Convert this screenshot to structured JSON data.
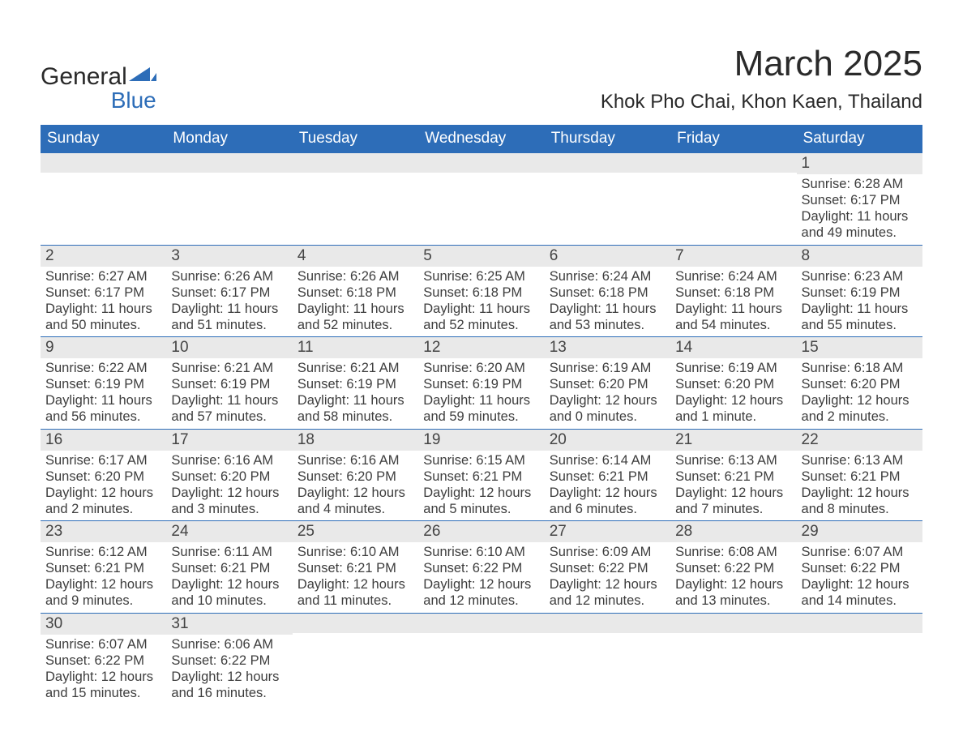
{
  "logo": {
    "word1": "General",
    "word2": "Blue",
    "shape_color": "#2d6db8"
  },
  "title": "March 2025",
  "location": "Khok Pho Chai, Khon Kaen, Thailand",
  "header_bg": "#2d6db8",
  "header_fg": "#ffffff",
  "strip_bg": "#e9e9e9",
  "border_color": "#2d6db8",
  "weekdays": [
    "Sunday",
    "Monday",
    "Tuesday",
    "Wednesday",
    "Thursday",
    "Friday",
    "Saturday"
  ],
  "weeks": [
    [
      null,
      null,
      null,
      null,
      null,
      null,
      {
        "n": "1",
        "sunrise": "6:28 AM",
        "sunset": "6:17 PM",
        "daylight": "11 hours and 49 minutes."
      }
    ],
    [
      {
        "n": "2",
        "sunrise": "6:27 AM",
        "sunset": "6:17 PM",
        "daylight": "11 hours and 50 minutes."
      },
      {
        "n": "3",
        "sunrise": "6:26 AM",
        "sunset": "6:17 PM",
        "daylight": "11 hours and 51 minutes."
      },
      {
        "n": "4",
        "sunrise": "6:26 AM",
        "sunset": "6:18 PM",
        "daylight": "11 hours and 52 minutes."
      },
      {
        "n": "5",
        "sunrise": "6:25 AM",
        "sunset": "6:18 PM",
        "daylight": "11 hours and 52 minutes."
      },
      {
        "n": "6",
        "sunrise": "6:24 AM",
        "sunset": "6:18 PM",
        "daylight": "11 hours and 53 minutes."
      },
      {
        "n": "7",
        "sunrise": "6:24 AM",
        "sunset": "6:18 PM",
        "daylight": "11 hours and 54 minutes."
      },
      {
        "n": "8",
        "sunrise": "6:23 AM",
        "sunset": "6:19 PM",
        "daylight": "11 hours and 55 minutes."
      }
    ],
    [
      {
        "n": "9",
        "sunrise": "6:22 AM",
        "sunset": "6:19 PM",
        "daylight": "11 hours and 56 minutes."
      },
      {
        "n": "10",
        "sunrise": "6:21 AM",
        "sunset": "6:19 PM",
        "daylight": "11 hours and 57 minutes."
      },
      {
        "n": "11",
        "sunrise": "6:21 AM",
        "sunset": "6:19 PM",
        "daylight": "11 hours and 58 minutes."
      },
      {
        "n": "12",
        "sunrise": "6:20 AM",
        "sunset": "6:19 PM",
        "daylight": "11 hours and 59 minutes."
      },
      {
        "n": "13",
        "sunrise": "6:19 AM",
        "sunset": "6:20 PM",
        "daylight": "12 hours and 0 minutes."
      },
      {
        "n": "14",
        "sunrise": "6:19 AM",
        "sunset": "6:20 PM",
        "daylight": "12 hours and 1 minute."
      },
      {
        "n": "15",
        "sunrise": "6:18 AM",
        "sunset": "6:20 PM",
        "daylight": "12 hours and 2 minutes."
      }
    ],
    [
      {
        "n": "16",
        "sunrise": "6:17 AM",
        "sunset": "6:20 PM",
        "daylight": "12 hours and 2 minutes."
      },
      {
        "n": "17",
        "sunrise": "6:16 AM",
        "sunset": "6:20 PM",
        "daylight": "12 hours and 3 minutes."
      },
      {
        "n": "18",
        "sunrise": "6:16 AM",
        "sunset": "6:20 PM",
        "daylight": "12 hours and 4 minutes."
      },
      {
        "n": "19",
        "sunrise": "6:15 AM",
        "sunset": "6:21 PM",
        "daylight": "12 hours and 5 minutes."
      },
      {
        "n": "20",
        "sunrise": "6:14 AM",
        "sunset": "6:21 PM",
        "daylight": "12 hours and 6 minutes."
      },
      {
        "n": "21",
        "sunrise": "6:13 AM",
        "sunset": "6:21 PM",
        "daylight": "12 hours and 7 minutes."
      },
      {
        "n": "22",
        "sunrise": "6:13 AM",
        "sunset": "6:21 PM",
        "daylight": "12 hours and 8 minutes."
      }
    ],
    [
      {
        "n": "23",
        "sunrise": "6:12 AM",
        "sunset": "6:21 PM",
        "daylight": "12 hours and 9 minutes."
      },
      {
        "n": "24",
        "sunrise": "6:11 AM",
        "sunset": "6:21 PM",
        "daylight": "12 hours and 10 minutes."
      },
      {
        "n": "25",
        "sunrise": "6:10 AM",
        "sunset": "6:21 PM",
        "daylight": "12 hours and 11 minutes."
      },
      {
        "n": "26",
        "sunrise": "6:10 AM",
        "sunset": "6:22 PM",
        "daylight": "12 hours and 12 minutes."
      },
      {
        "n": "27",
        "sunrise": "6:09 AM",
        "sunset": "6:22 PM",
        "daylight": "12 hours and 12 minutes."
      },
      {
        "n": "28",
        "sunrise": "6:08 AM",
        "sunset": "6:22 PM",
        "daylight": "12 hours and 13 minutes."
      },
      {
        "n": "29",
        "sunrise": "6:07 AM",
        "sunset": "6:22 PM",
        "daylight": "12 hours and 14 minutes."
      }
    ],
    [
      {
        "n": "30",
        "sunrise": "6:07 AM",
        "sunset": "6:22 PM",
        "daylight": "12 hours and 15 minutes."
      },
      {
        "n": "31",
        "sunrise": "6:06 AM",
        "sunset": "6:22 PM",
        "daylight": "12 hours and 16 minutes."
      },
      null,
      null,
      null,
      null,
      null
    ]
  ],
  "labels": {
    "sunrise": "Sunrise",
    "sunset": "Sunset",
    "daylight": "Daylight"
  }
}
